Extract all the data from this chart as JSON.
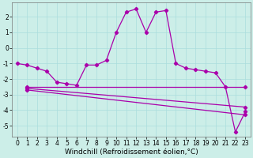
{
  "xlabel": "Windchill (Refroidissement éolien,°C)",
  "background_color": "#cceee8",
  "line_color": "#aa00aa",
  "xlim": [
    -0.5,
    23.5
  ],
  "ylim": [
    -5.7,
    2.9
  ],
  "yticks": [
    -5,
    -4,
    -3,
    -2,
    -1,
    0,
    1,
    2
  ],
  "xticks": [
    0,
    1,
    2,
    3,
    4,
    5,
    6,
    7,
    8,
    9,
    10,
    11,
    12,
    13,
    14,
    15,
    16,
    17,
    18,
    19,
    20,
    21,
    22,
    23
  ],
  "curve_x": [
    0,
    1,
    2,
    3,
    4,
    5,
    6,
    7,
    8,
    9,
    10,
    11,
    12,
    13,
    14,
    15,
    16,
    17,
    18,
    19,
    20,
    21,
    22,
    23
  ],
  "curve_y": [
    -1.0,
    -1.1,
    -1.3,
    -1.5,
    -2.2,
    -2.3,
    -2.4,
    -1.1,
    -1.1,
    -0.8,
    1.0,
    2.3,
    2.5,
    1.0,
    2.3,
    2.4,
    -1.0,
    -1.3,
    -1.4,
    -1.5,
    -1.6,
    -2.5,
    -5.4,
    -4.1
  ],
  "line1_x": [
    1,
    23
  ],
  "line1_y": [
    -2.5,
    -2.5
  ],
  "line2_x": [
    1,
    23
  ],
  "line2_y": [
    -2.6,
    -3.8
  ],
  "line3_x": [
    1,
    23
  ],
  "line3_y": [
    -2.7,
    -4.3
  ],
  "grid_color": "#aadddd",
  "tick_fontsize": 5.5,
  "xlabel_fontsize": 6.5
}
